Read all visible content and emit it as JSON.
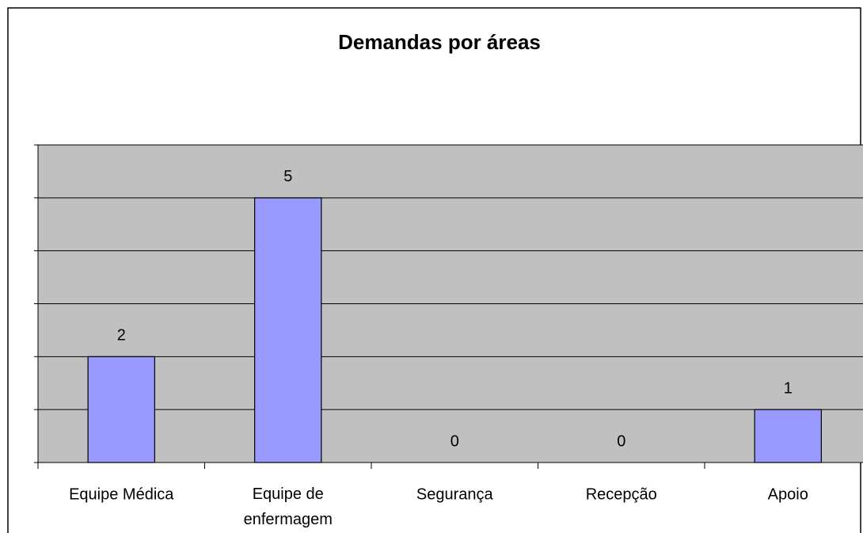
{
  "chart_data": {
    "type": "bar",
    "title": "Demandas por áreas",
    "categories": [
      "Equipe Médica",
      "Equipe de enfermagem",
      "Segurança",
      "Recepção",
      "Apoio"
    ],
    "values": [
      2,
      5,
      0,
      0,
      1
    ],
    "color": "#9999ff",
    "plot_background": "#c0c0c0",
    "ylim": [
      0,
      6
    ],
    "yticks": [
      0,
      1,
      2,
      3,
      4,
      5,
      6
    ],
    "grid": true
  }
}
